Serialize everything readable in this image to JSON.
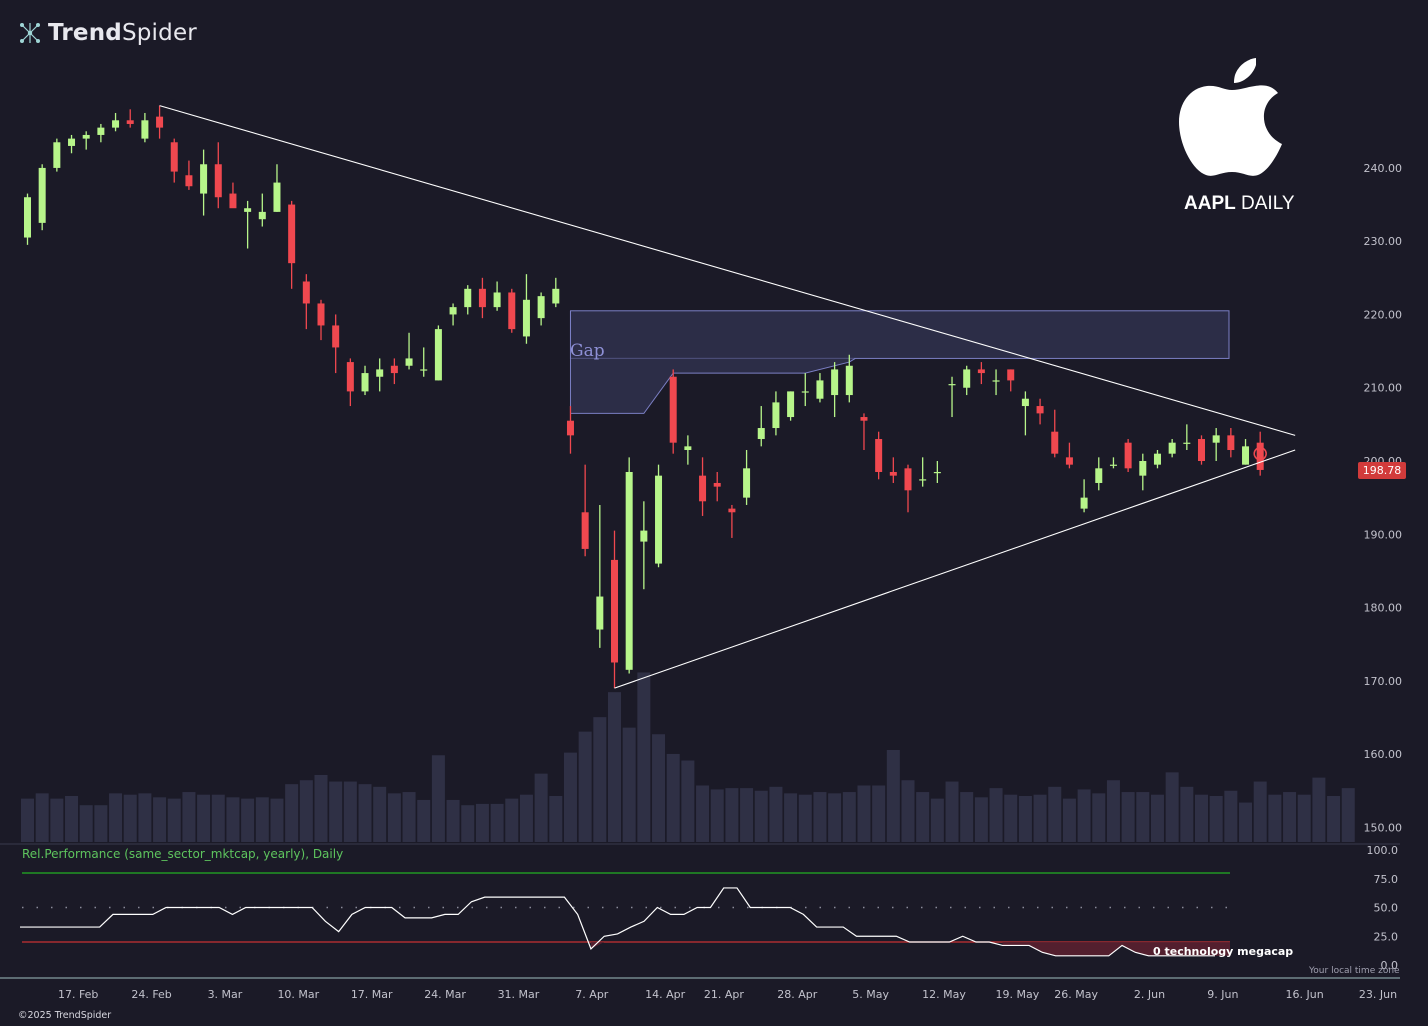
{
  "header": {
    "logo_brand_bold": "Trend",
    "logo_brand_light": "Spider",
    "ticker_symbol": "AAPL",
    "ticker_interval": "DAILY",
    "copyright": "©2025 TrendSpider"
  },
  "colors": {
    "background": "#1b1a27",
    "bull": "#b7f58a",
    "bear": "#f0484f",
    "volume": "#2f3045",
    "gap_fill": "#2c2d47",
    "gap_border": "#7b7fc4",
    "trendline": "#ffffff",
    "rel_perf_line": "#ffffff",
    "rel_upper": "#22b022",
    "rel_lower": "#c83232"
  },
  "annotations": {
    "gap_label": "Gap",
    "rel_perf_label": "Rel.Performance (same_sector_mktcap, yearly), Daily",
    "sector_label": "0 technology megacap",
    "timezone_label": "Your local time zone",
    "last_price": "198.78"
  },
  "chart_data": [
    {
      "type": "candlestick",
      "ticker": "AAPL",
      "interval": "DAILY",
      "ylim": [
        148,
        252
      ],
      "y_ticks": [
        150,
        160,
        170,
        180,
        190,
        200,
        210,
        220,
        230,
        240
      ],
      "y_tick_labels": [
        "150.00",
        "160.00",
        "170.00",
        "180.00",
        "190.00",
        "200.00",
        "210.00",
        "220.00",
        "230.00",
        "240.00"
      ],
      "x_tick_labels": [
        "17. Feb",
        "24. Feb",
        "3. Mar",
        "10. Mar",
        "17. Mar",
        "24. Mar",
        "31. Mar",
        "7. Apr",
        "14. Apr",
        "21. Apr",
        "28. Apr",
        "5. May",
        "12. May",
        "19. May",
        "26. May",
        "2. Jun",
        "9. Jun",
        "16. Jun",
        "23. Jun"
      ],
      "candles": [
        {
          "date": "2025-02-10",
          "o": 230.5,
          "h": 236.5,
          "l": 229.5,
          "c": 236.0
        },
        {
          "date": "2025-02-11",
          "o": 232.5,
          "h": 240.5,
          "l": 231.5,
          "c": 240.0
        },
        {
          "date": "2025-02-12",
          "o": 240.0,
          "h": 244.0,
          "l": 239.5,
          "c": 243.5
        },
        {
          "date": "2025-02-13",
          "o": 243.0,
          "h": 244.5,
          "l": 242.0,
          "c": 244.0
        },
        {
          "date": "2025-02-14",
          "o": 244.0,
          "h": 245.0,
          "l": 242.5,
          "c": 244.5
        },
        {
          "date": "2025-02-18",
          "o": 244.5,
          "h": 246.0,
          "l": 243.5,
          "c": 245.5
        },
        {
          "date": "2025-02-19",
          "o": 245.5,
          "h": 247.5,
          "l": 245.0,
          "c": 246.5
        },
        {
          "date": "2025-02-20",
          "o": 246.5,
          "h": 248.0,
          "l": 245.5,
          "c": 246.0
        },
        {
          "date": "2025-02-21",
          "o": 244.0,
          "h": 247.5,
          "l": 243.5,
          "c": 246.5
        },
        {
          "date": "2025-02-24",
          "o": 247.0,
          "h": 248.5,
          "l": 244.0,
          "c": 245.5
        },
        {
          "date": "2025-02-25",
          "o": 243.5,
          "h": 244.0,
          "l": 238.0,
          "c": 239.5
        },
        {
          "date": "2025-02-26",
          "o": 239.0,
          "h": 241.0,
          "l": 237.0,
          "c": 237.5
        },
        {
          "date": "2025-02-27",
          "o": 236.5,
          "h": 242.5,
          "l": 233.5,
          "c": 240.5
        },
        {
          "date": "2025-02-28",
          "o": 240.5,
          "h": 243.5,
          "l": 234.5,
          "c": 236.0
        },
        {
          "date": "2025-03-03",
          "o": 236.5,
          "h": 238.0,
          "l": 235.0,
          "c": 234.5
        },
        {
          "date": "2025-03-04",
          "o": 234.0,
          "h": 235.5,
          "l": 229.0,
          "c": 234.5
        },
        {
          "date": "2025-03-05",
          "o": 233.0,
          "h": 236.5,
          "l": 232.0,
          "c": 234.0
        },
        {
          "date": "2025-03-06",
          "o": 234.0,
          "h": 240.5,
          "l": 234.0,
          "c": 238.0
        },
        {
          "date": "2025-03-07",
          "o": 235.0,
          "h": 235.5,
          "l": 223.5,
          "c": 227.0
        },
        {
          "date": "2025-03-10",
          "o": 224.5,
          "h": 225.5,
          "l": 218.0,
          "c": 221.5
        },
        {
          "date": "2025-03-11",
          "o": 221.5,
          "h": 222.0,
          "l": 216.5,
          "c": 218.5
        },
        {
          "date": "2025-03-12",
          "o": 218.5,
          "h": 220.0,
          "l": 212.0,
          "c": 215.5
        },
        {
          "date": "2025-03-13",
          "o": 213.5,
          "h": 214.0,
          "l": 207.5,
          "c": 209.5
        },
        {
          "date": "2025-03-14",
          "o": 209.5,
          "h": 213.0,
          "l": 209.0,
          "c": 212.0
        },
        {
          "date": "2025-03-17",
          "o": 211.5,
          "h": 214.0,
          "l": 209.5,
          "c": 212.5
        },
        {
          "date": "2025-03-18",
          "o": 213.0,
          "h": 214.0,
          "l": 210.5,
          "c": 212.0
        },
        {
          "date": "2025-03-19",
          "o": 213.0,
          "h": 217.5,
          "l": 212.5,
          "c": 214.0
        },
        {
          "date": "2025-03-20",
          "o": 212.5,
          "h": 215.5,
          "l": 211.5,
          "c": 212.5
        },
        {
          "date": "2025-03-21",
          "o": 211.0,
          "h": 218.5,
          "l": 211.0,
          "c": 218.0
        },
        {
          "date": "2025-03-24",
          "o": 220.0,
          "h": 221.5,
          "l": 218.5,
          "c": 221.0
        },
        {
          "date": "2025-03-25",
          "o": 221.0,
          "h": 224.0,
          "l": 220.0,
          "c": 223.5
        },
        {
          "date": "2025-03-26",
          "o": 223.5,
          "h": 225.0,
          "l": 219.5,
          "c": 221.0
        },
        {
          "date": "2025-03-27",
          "o": 221.0,
          "h": 224.5,
          "l": 220.5,
          "c": 223.0
        },
        {
          "date": "2025-03-28",
          "o": 223.0,
          "h": 223.5,
          "l": 217.5,
          "c": 218.0
        },
        {
          "date": "2025-03-31",
          "o": 217.0,
          "h": 225.5,
          "l": 216.0,
          "c": 222.0
        },
        {
          "date": "2025-04-01",
          "o": 219.5,
          "h": 223.0,
          "l": 218.5,
          "c": 222.5
        },
        {
          "date": "2025-04-02",
          "o": 221.5,
          "h": 225.0,
          "l": 221.0,
          "c": 223.5
        },
        {
          "date": "2025-04-03",
          "o": 205.5,
          "h": 207.5,
          "l": 201.0,
          "c": 203.5
        },
        {
          "date": "2025-04-04",
          "o": 193.0,
          "h": 199.5,
          "l": 187.0,
          "c": 188.0
        },
        {
          "date": "2025-04-07",
          "o": 177.0,
          "h": 194.0,
          "l": 174.5,
          "c": 181.5
        },
        {
          "date": "2025-04-08",
          "o": 186.5,
          "h": 190.5,
          "l": 169.0,
          "c": 172.5
        },
        {
          "date": "2025-04-09",
          "o": 171.5,
          "h": 200.5,
          "l": 171.0,
          "c": 198.5
        },
        {
          "date": "2025-04-10",
          "o": 189.0,
          "h": 194.5,
          "l": 182.5,
          "c": 190.5
        },
        {
          "date": "2025-04-11",
          "o": 186.0,
          "h": 199.5,
          "l": 185.5,
          "c": 198.0
        },
        {
          "date": "2025-04-14",
          "o": 211.5,
          "h": 212.5,
          "l": 201.0,
          "c": 202.5
        },
        {
          "date": "2025-04-15",
          "o": 201.5,
          "h": 203.5,
          "l": 199.5,
          "c": 202.0
        },
        {
          "date": "2025-04-16",
          "o": 198.0,
          "h": 200.5,
          "l": 192.5,
          "c": 194.5
        },
        {
          "date": "2025-04-17",
          "o": 197.0,
          "h": 198.5,
          "l": 194.5,
          "c": 196.5
        },
        {
          "date": "2025-04-21",
          "o": 193.5,
          "h": 194.0,
          "l": 189.5,
          "c": 193.0
        },
        {
          "date": "2025-04-22",
          "o": 195.0,
          "h": 201.5,
          "l": 194.0,
          "c": 199.0
        },
        {
          "date": "2025-04-23",
          "o": 203.0,
          "h": 207.5,
          "l": 202.0,
          "c": 204.5
        },
        {
          "date": "2025-04-24",
          "o": 204.5,
          "h": 209.5,
          "l": 203.5,
          "c": 208.0
        },
        {
          "date": "2025-04-25",
          "o": 206.0,
          "h": 209.5,
          "l": 205.5,
          "c": 209.5
        },
        {
          "date": "2025-04-28",
          "o": 209.5,
          "h": 212.0,
          "l": 207.5,
          "c": 209.5
        },
        {
          "date": "2025-04-29",
          "o": 208.5,
          "h": 212.0,
          "l": 208.0,
          "c": 211.0
        },
        {
          "date": "2025-04-30",
          "o": 209.0,
          "h": 213.5,
          "l": 206.0,
          "c": 212.5
        },
        {
          "date": "2025-05-01",
          "o": 209.0,
          "h": 214.5,
          "l": 208.0,
          "c": 213.0
        },
        {
          "date": "2025-05-02",
          "o": 206.0,
          "h": 206.5,
          "l": 201.5,
          "c": 205.5
        },
        {
          "date": "2025-05-05",
          "o": 203.0,
          "h": 204.0,
          "l": 197.5,
          "c": 198.5
        },
        {
          "date": "2025-05-06",
          "o": 198.5,
          "h": 200.5,
          "l": 197.0,
          "c": 198.0
        },
        {
          "date": "2025-05-07",
          "o": 199.0,
          "h": 199.5,
          "l": 193.0,
          "c": 196.0
        },
        {
          "date": "2025-05-08",
          "o": 197.5,
          "h": 200.5,
          "l": 196.5,
          "c": 197.5
        },
        {
          "date": "2025-05-09",
          "o": 198.5,
          "h": 200.0,
          "l": 197.0,
          "c": 198.5
        },
        {
          "date": "2025-05-12",
          "o": 210.5,
          "h": 211.5,
          "l": 206.0,
          "c": 210.5
        },
        {
          "date": "2025-05-13",
          "o": 210.0,
          "h": 213.0,
          "l": 209.0,
          "c": 212.5
        },
        {
          "date": "2025-05-14",
          "o": 212.5,
          "h": 213.5,
          "l": 210.5,
          "c": 212.0
        },
        {
          "date": "2025-05-15",
          "o": 211.0,
          "h": 212.5,
          "l": 209.0,
          "c": 211.0
        },
        {
          "date": "2025-05-16",
          "o": 212.5,
          "h": 212.5,
          "l": 209.5,
          "c": 211.0
        },
        {
          "date": "2025-05-19",
          "o": 207.5,
          "h": 209.5,
          "l": 203.5,
          "c": 208.5
        },
        {
          "date": "2025-05-20",
          "o": 207.5,
          "h": 208.5,
          "l": 205.0,
          "c": 206.5
        },
        {
          "date": "2025-05-21",
          "o": 204.0,
          "h": 207.0,
          "l": 200.5,
          "c": 201.0
        },
        {
          "date": "2025-05-22",
          "o": 200.5,
          "h": 202.5,
          "l": 199.0,
          "c": 199.5
        },
        {
          "date": "2025-05-23",
          "o": 193.5,
          "h": 197.5,
          "l": 193.0,
          "c": 195.0
        },
        {
          "date": "2025-05-27",
          "o": 197.0,
          "h": 200.5,
          "l": 196.0,
          "c": 199.0
        },
        {
          "date": "2025-05-28",
          "o": 199.5,
          "h": 200.5,
          "l": 199.0,
          "c": 199.5
        },
        {
          "date": "2025-05-29",
          "o": 202.5,
          "h": 203.0,
          "l": 198.5,
          "c": 199.0
        },
        {
          "date": "2025-05-30",
          "o": 198.0,
          "h": 201.0,
          "l": 196.0,
          "c": 200.0
        },
        {
          "date": "2025-06-02",
          "o": 199.5,
          "h": 201.5,
          "l": 199.0,
          "c": 201.0
        },
        {
          "date": "2025-06-03",
          "o": 201.0,
          "h": 203.0,
          "l": 200.5,
          "c": 202.5
        },
        {
          "date": "2025-06-04",
          "o": 202.5,
          "h": 205.0,
          "l": 201.5,
          "c": 202.5
        },
        {
          "date": "2025-06-05",
          "o": 203.0,
          "h": 203.5,
          "l": 199.5,
          "c": 200.0
        },
        {
          "date": "2025-06-06",
          "o": 202.5,
          "h": 204.5,
          "l": 200.0,
          "c": 203.5
        },
        {
          "date": "2025-06-09",
          "o": 203.5,
          "h": 204.5,
          "l": 200.5,
          "c": 201.5
        },
        {
          "date": "2025-06-10",
          "o": 199.5,
          "h": 203.0,
          "l": 199.5,
          "c": 202.0
        },
        {
          "date": "2025-06-11",
          "o": 202.5,
          "h": 204.0,
          "l": 198.0,
          "c": 198.78
        }
      ],
      "volume": [
        33,
        37,
        33,
        35,
        28,
        28,
        37,
        36,
        37,
        34,
        33,
        38,
        36,
        36,
        34,
        33,
        34,
        33,
        44,
        47,
        51,
        46,
        46,
        44,
        42,
        37,
        38,
        32,
        66,
        32,
        28,
        29,
        29,
        33,
        36,
        52,
        35,
        68,
        84,
        95,
        114,
        87,
        129,
        82,
        67,
        62,
        43,
        40,
        41,
        41,
        39,
        42,
        37,
        36,
        38,
        37,
        38,
        43,
        43,
        70,
        47,
        38,
        33,
        46,
        38,
        34,
        41,
        36,
        35,
        36,
        42,
        33,
        40,
        37,
        47,
        38,
        38,
        36,
        53,
        42,
        36,
        35,
        39,
        30,
        46,
        36,
        38,
        36,
        49,
        35,
        41
      ],
      "volume_ylim": [
        0,
        175
      ],
      "trendlines": [
        {
          "name": "upper-trendline",
          "from": {
            "date": "2025-02-24",
            "price": 248.5
          },
          "to": {
            "date": "2025-06-13",
            "price": 203.5
          }
        },
        {
          "name": "lower-trendline",
          "from": {
            "date": "2025-04-08",
            "price": 169.0
          },
          "to": {
            "date": "2025-06-13",
            "price": 201.5
          }
        }
      ],
      "gap_zone": {
        "label": "Gap",
        "upper": 220.5,
        "top_start": 220.5,
        "outer_lower_start": 206.5,
        "outer_lower_end": 214.0,
        "inner_path": [
          {
            "date": "2025-04-03",
            "price": 206.5
          },
          {
            "date": "2025-04-10",
            "price": 206.5
          },
          {
            "date": "2025-04-14",
            "price": 212.0
          },
          {
            "date": "2025-04-28",
            "price": 212.0
          },
          {
            "date": "2025-05-01",
            "price": 213.5
          }
        ],
        "start_date": "2025-04-03",
        "end_date": "2025-06-13"
      }
    },
    {
      "type": "line",
      "title": "Rel.Performance (same_sector_mktcap, yearly), Daily",
      "ylim": [
        0,
        100
      ],
      "y_ticks": [
        0,
        25,
        50,
        75,
        100
      ],
      "y_tick_labels": [
        "0.0",
        "25.0",
        "50.0",
        "75.0",
        "100.0"
      ],
      "upper_band": 80,
      "lower_band": 20,
      "mid_line": 50,
      "series": [
        {
          "values": [
            33,
            33,
            33,
            33,
            33,
            33,
            33,
            44,
            44,
            44,
            44,
            50,
            50,
            50,
            50,
            50,
            44,
            50,
            50,
            50,
            50,
            50,
            50,
            38,
            29,
            44,
            50,
            50,
            50,
            41,
            41,
            41,
            44,
            44,
            55,
            59,
            59,
            59,
            59,
            59,
            59,
            59,
            44,
            14,
            25,
            27,
            33,
            38,
            50,
            44,
            44,
            50,
            50,
            67,
            67,
            50,
            50,
            50,
            50,
            44,
            33,
            33,
            33,
            25,
            25,
            25,
            25,
            20,
            20,
            20,
            20,
            25,
            20,
            20,
            17,
            17,
            17,
            11,
            8,
            8,
            8,
            8,
            8,
            17,
            11,
            8,
            8,
            8,
            8,
            8,
            8
          ]
        }
      ]
    }
  ]
}
